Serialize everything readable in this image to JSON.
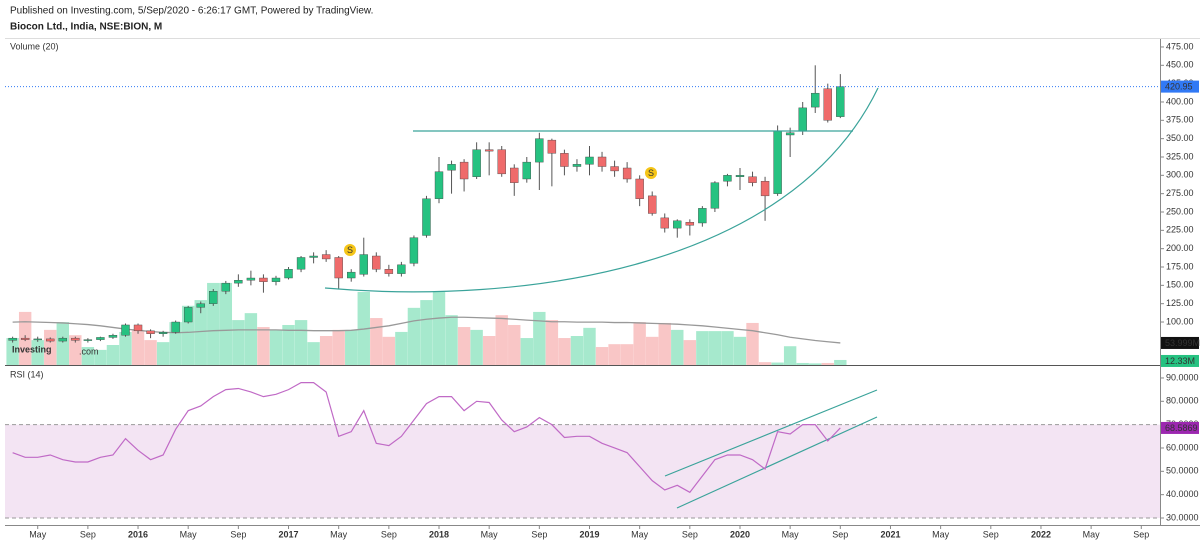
{
  "header": {
    "published": "Published on Investing.com, 5/Sep/2020 - 6:26:17 GMT, Powered by TradingView.",
    "logo_main": "Investing",
    "logo_suffix": ".com"
  },
  "chart_data": [
    {
      "type": "candlestick",
      "title": "Biocon Ltd., India, NSE:BION, M",
      "x": [
        2015.1667,
        2015.25,
        2015.3333,
        2015.4167,
        2015.5,
        2015.5833,
        2015.6667,
        2015.75,
        2015.8333,
        2015.9167,
        2016,
        2016.0833,
        2016.1667,
        2016.25,
        2016.3333,
        2016.4167,
        2016.5,
        2016.5833,
        2016.6667,
        2016.75,
        2016.8333,
        2016.9167,
        2017,
        2017.0833,
        2017.1667,
        2017.25,
        2017.3333,
        2017.4167,
        2017.5,
        2017.5833,
        2017.6667,
        2017.75,
        2017.8333,
        2017.9167,
        2018,
        2018.0833,
        2018.1667,
        2018.25,
        2018.3333,
        2018.4167,
        2018.5,
        2018.5833,
        2018.6667,
        2018.75,
        2018.8333,
        2018.9167,
        2019,
        2019.0833,
        2019.1667,
        2019.25,
        2019.3333,
        2019.4167,
        2019.5,
        2019.5833,
        2019.6667,
        2019.75,
        2019.8333,
        2019.9167,
        2020,
        2020.0833,
        2020.1667,
        2020.25,
        2020.3333,
        2020.4167,
        2020.5,
        2020.5833,
        2020.6667
      ],
      "open": [
        75,
        78,
        76,
        77,
        74,
        78,
        75,
        76,
        79,
        82,
        96,
        88,
        84,
        86,
        100,
        120,
        125,
        142,
        153,
        157,
        160,
        155,
        160,
        172,
        188,
        192,
        188,
        160,
        165,
        190,
        172,
        166,
        180,
        218,
        268,
        307,
        318,
        298,
        335,
        335,
        310,
        295,
        318,
        348,
        330,
        312,
        315,
        325,
        312,
        310,
        295,
        272,
        242,
        228,
        236,
        235,
        255,
        292,
        298,
        298,
        292,
        275,
        355,
        360,
        393,
        418,
        380
      ],
      "high": [
        80,
        82,
        80,
        79,
        80,
        80,
        78,
        80,
        84,
        98,
        98,
        90,
        88,
        102,
        122,
        128,
        145,
        156,
        165,
        170,
        165,
        163,
        175,
        190,
        195,
        198,
        190,
        172,
        215,
        195,
        178,
        182,
        218,
        272,
        325,
        320,
        322,
        345,
        345,
        340,
        315,
        325,
        358,
        350,
        335,
        322,
        340,
        332,
        320,
        318,
        300,
        278,
        248,
        240,
        240,
        258,
        292,
        302,
        310,
        305,
        298,
        368,
        365,
        400,
        450,
        425,
        438
      ],
      "low": [
        72,
        74,
        73,
        72,
        72,
        72,
        72,
        74,
        77,
        80,
        84,
        78,
        80,
        84,
        98,
        112,
        122,
        138,
        148,
        150,
        140,
        150,
        158,
        168,
        180,
        182,
        145,
        155,
        162,
        168,
        162,
        162,
        176,
        215,
        262,
        275,
        278,
        295,
        300,
        298,
        272,
        290,
        280,
        285,
        300,
        305,
        300,
        305,
        298,
        290,
        258,
        245,
        222,
        215,
        218,
        230,
        250,
        285,
        280,
        285,
        238,
        272,
        325,
        355,
        385,
        372,
        378
      ],
      "close": [
        78,
        76,
        77,
        74,
        78,
        75,
        76,
        79,
        82,
        96,
        88,
        84,
        86,
        100,
        120,
        125,
        142,
        153,
        157,
        160,
        155,
        160,
        172,
        188,
        190,
        186,
        160,
        168,
        192,
        172,
        166,
        178,
        215,
        268,
        305,
        315,
        295,
        335,
        333,
        302,
        290,
        318,
        350,
        330,
        312,
        315,
        325,
        312,
        306,
        295,
        268,
        248,
        228,
        238,
        232,
        255,
        290,
        300,
        300,
        290,
        272,
        360,
        358,
        392,
        412,
        375,
        420.95
      ],
      "up_color": "#26c281",
      "down_color": "#ef6b6b",
      "last_line_color": "#3179f5",
      "ylim": [
        41.4,
        484.5
      ],
      "xlim": [
        2015.116,
        2022.791
      ],
      "yticks": [
        {
          "value": 100,
          "label": "100.00"
        },
        {
          "value": 125,
          "label": "125.00"
        },
        {
          "value": 150,
          "label": "150.00"
        },
        {
          "value": 175,
          "label": "175.00"
        },
        {
          "value": 200,
          "label": "200.00"
        },
        {
          "value": 225,
          "label": "225.00"
        },
        {
          "value": 250,
          "label": "250.00"
        },
        {
          "value": 275,
          "label": "275.00"
        },
        {
          "value": 300,
          "label": "300.00"
        },
        {
          "value": 325,
          "label": "325.00"
        },
        {
          "value": 350,
          "label": "350.00"
        },
        {
          "value": 375,
          "label": "375.00"
        },
        {
          "value": 400,
          "label": "400.00"
        },
        {
          "value": 425,
          "label": "425.00"
        },
        {
          "value": 450,
          "label": "450.00"
        },
        {
          "value": 475,
          "label": "475.00"
        }
      ],
      "xticks": [
        {
          "value": 2015.3333,
          "label": "May"
        },
        {
          "value": 2015.6667,
          "label": "Sep"
        },
        2016,
        {
          "value": 2016.3333,
          "label": "May"
        },
        {
          "value": 2016.6667,
          "label": "Sep"
        },
        2017,
        {
          "value": 2017.3333,
          "label": "May"
        },
        {
          "value": 2017.6667,
          "label": "Sep"
        },
        2018,
        {
          "value": 2018.3333,
          "label": "May"
        },
        {
          "value": 2018.6667,
          "label": "Sep"
        },
        2019,
        {
          "value": 2019.3333,
          "label": "May"
        },
        {
          "value": 2019.6667,
          "label": "Sep"
        },
        2020,
        {
          "value": 2020.3333,
          "label": "May"
        },
        {
          "value": 2020.6667,
          "label": "Sep"
        },
        2021,
        {
          "value": 2021.3333,
          "label": "May"
        },
        {
          "value": 2021.6667,
          "label": "Sep"
        },
        2022,
        {
          "value": 2022.3333,
          "label": "May"
        },
        {
          "value": 2022.6667,
          "label": "Sep"
        }
      ],
      "markers": [
        "S",
        "S"
      ]
    },
    {
      "type": "bar",
      "title": "Volume (20)",
      "values": [
        66,
        130,
        61,
        86,
        105,
        73,
        44,
        37,
        49,
        81,
        86,
        61,
        56,
        105,
        145,
        159,
        201,
        201,
        110,
        127,
        93,
        86,
        98,
        110,
        56,
        71,
        86,
        86,
        179,
        115,
        69,
        81,
        140,
        159,
        179,
        122,
        93,
        86,
        71,
        122,
        98,
        66,
        130,
        110,
        66,
        71,
        91,
        44,
        51,
        51,
        105,
        69,
        103,
        86,
        61,
        83,
        83,
        83,
        69,
        103,
        7,
        6,
        46,
        5,
        4,
        5,
        12.33
      ],
      "ma_values": [
        105,
        106,
        105,
        104,
        103,
        101,
        99,
        96,
        92,
        88,
        85,
        82,
        80,
        79,
        80,
        82,
        84,
        85,
        86,
        86,
        86,
        86,
        85,
        85,
        84,
        84,
        84,
        85,
        88,
        92,
        96,
        102,
        108,
        112,
        115,
        117,
        117,
        116,
        115,
        114,
        112,
        110,
        108,
        106,
        106,
        105,
        105,
        105,
        104,
        104,
        103,
        102,
        101,
        100,
        98,
        96,
        93,
        90,
        87,
        84,
        79,
        74,
        68,
        64,
        60,
        57,
        53.999
      ],
      "last_labels": [
        "53.999M",
        "12.33M"
      ],
      "up_color": "#a6e9cd",
      "down_color": "#f9c6c6",
      "ma_color": "#999999",
      "ylim": [
        0,
        796
      ]
    },
    {
      "type": "line",
      "title": "RSI (14)",
      "values": [
        58,
        56,
        56,
        57,
        55,
        54,
        54,
        56,
        57,
        64,
        59,
        55,
        57,
        68,
        76,
        78,
        82,
        85,
        85.5,
        84,
        82,
        83,
        85,
        88,
        88,
        84,
        65,
        67,
        76,
        62,
        61,
        65,
        72,
        79,
        82,
        82,
        76,
        80,
        79.5,
        72,
        67,
        69,
        73,
        70,
        64.5,
        65,
        65,
        62,
        60,
        58,
        52,
        46,
        42,
        44,
        41,
        48,
        55,
        57,
        57,
        55,
        51,
        67,
        66,
        70,
        70,
        63,
        68.5869
      ],
      "color": "#c06ac6",
      "band": [
        30,
        70
      ],
      "band_color": "#f3e4f3",
      "ylim": [
        27,
        94.7
      ],
      "yticks": [
        {
          "value": 30,
          "label": "30.0000"
        },
        {
          "value": 40,
          "label": "40.0000"
        },
        {
          "value": 50,
          "label": "50.0000"
        },
        {
          "value": 60,
          "label": "60.0000"
        },
        {
          "value": 70,
          "label": "70.0000"
        },
        {
          "value": 80,
          "label": "80.0000"
        },
        {
          "value": 90,
          "label": "90.0000"
        }
      ]
    }
  ]
}
